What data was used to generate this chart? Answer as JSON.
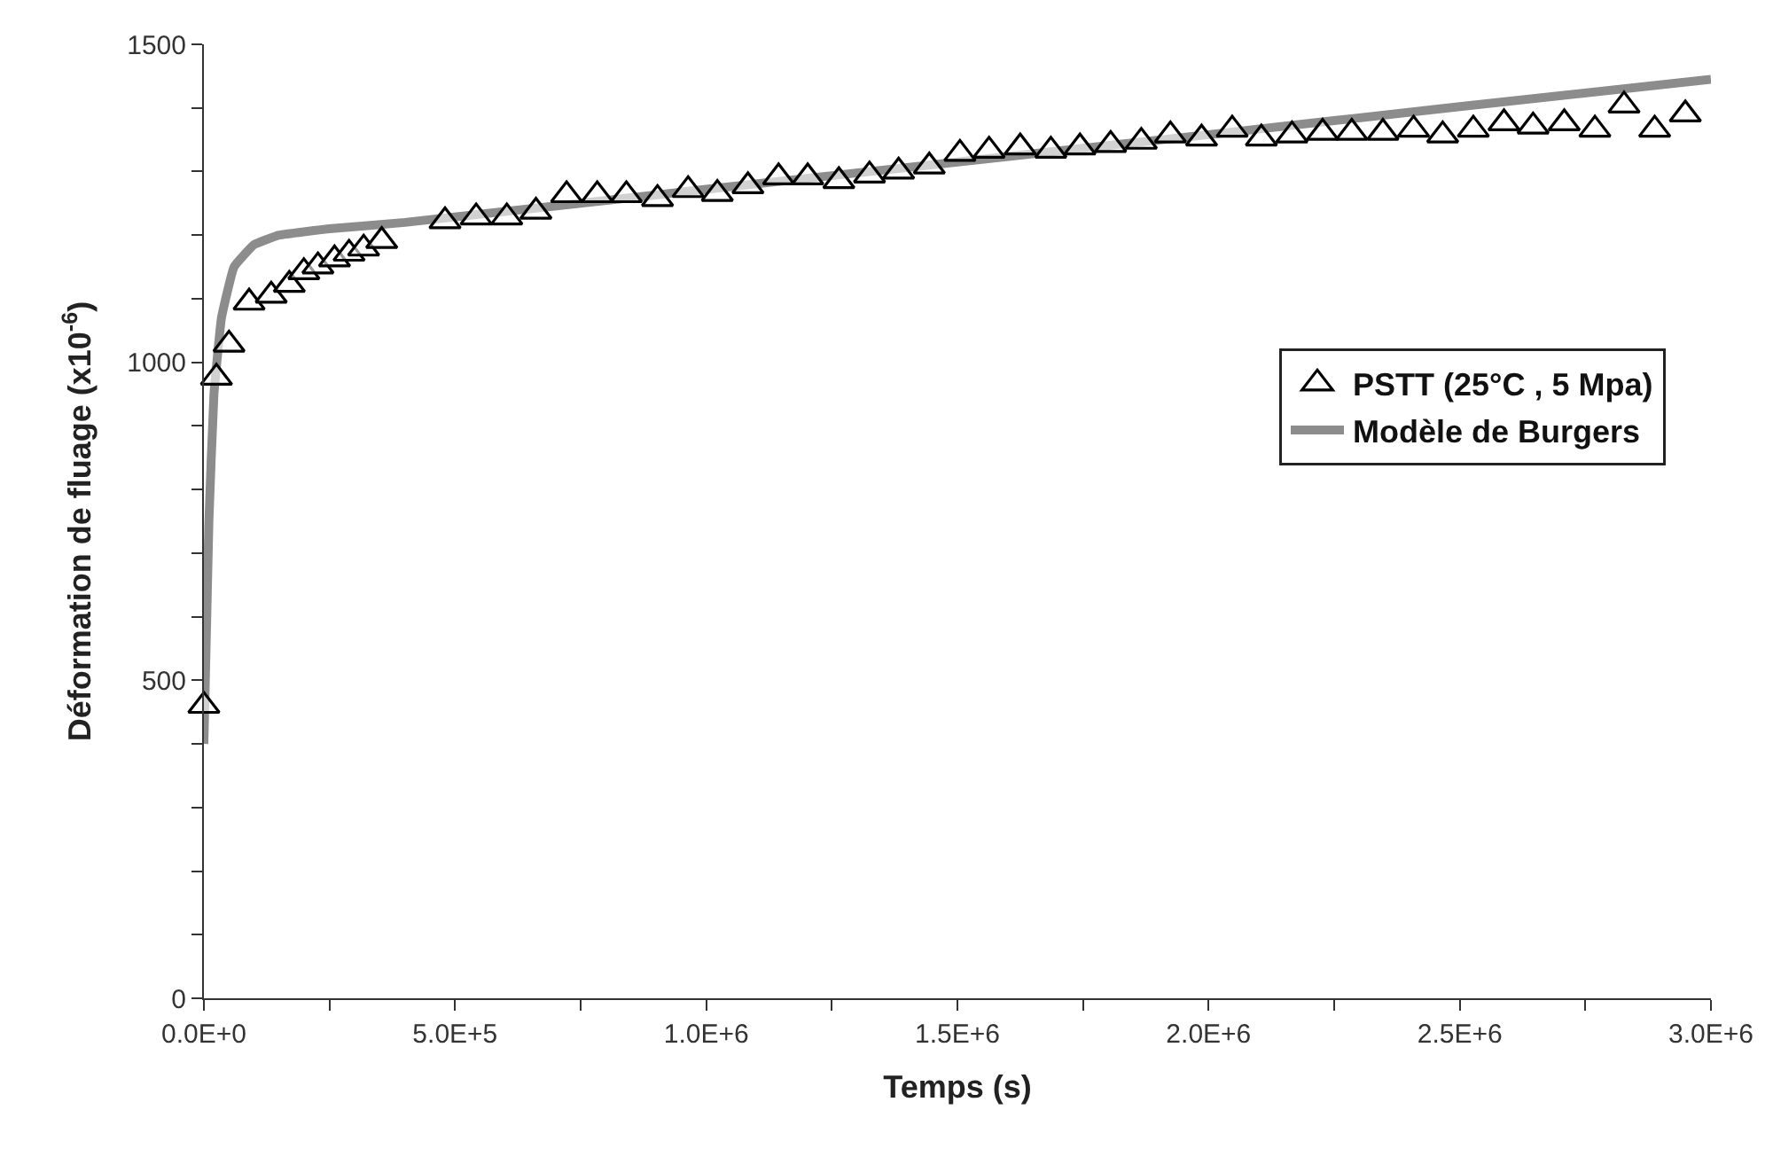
{
  "chart_data": {
    "type": "scatter",
    "xlabel": "Temps (s)",
    "ylabel": "Déformation de fluage (x10$^{-6}$)",
    "xlim": [
      0,
      3000000
    ],
    "ylim": [
      0,
      1500
    ],
    "xticks": [
      {
        "value": 0,
        "label": "0.0E+0"
      },
      {
        "value": 250000,
        "label": null
      },
      {
        "value": 500000,
        "label": "5.0E+5"
      },
      {
        "value": 750000,
        "label": null
      },
      {
        "value": 1000000,
        "label": "1.0E+6"
      },
      {
        "value": 1250000,
        "label": null
      },
      {
        "value": 1500000,
        "label": "1.5E+6"
      },
      {
        "value": 1750000,
        "label": null
      },
      {
        "value": 2000000,
        "label": "2.0E+6"
      },
      {
        "value": 2250000,
        "label": null
      },
      {
        "value": 2500000,
        "label": "2.5E+6"
      },
      {
        "value": 2750000,
        "label": null
      },
      {
        "value": 3000000,
        "label": "3.0E+6"
      }
    ],
    "yticks": [
      0,
      {
        "value": 100,
        "label": null
      },
      {
        "value": 200,
        "label": null
      },
      {
        "value": 300,
        "label": null
      },
      {
        "value": 400,
        "label": null
      },
      500,
      {
        "value": 600,
        "label": null
      },
      {
        "value": 700,
        "label": null
      },
      {
        "value": 800,
        "label": null
      },
      {
        "value": 900,
        "label": null
      },
      1000,
      {
        "value": 1100,
        "label": null
      },
      {
        "value": 1200,
        "label": null
      },
      {
        "value": 1300,
        "label": null
      },
      {
        "value": 1400,
        "label": null
      },
      1500
    ],
    "legend": "right",
    "series": [
      {
        "name": "PSTT (25°C , 5 Mpa)",
        "marker": "triangle",
        "color": "#000000",
        "x": [
          0,
          25000,
          50000,
          90000,
          134000,
          170000,
          199000,
          227000,
          260000,
          289000,
          318000,
          354000,
          480000,
          542000,
          603000,
          661000,
          722000,
          783000,
          841000,
          903000,
          964000,
          1022000,
          1083000,
          1144000,
          1202000,
          1264000,
          1325000,
          1383000,
          1444000,
          1505000,
          1563000,
          1625000,
          1686000,
          1744000,
          1805000,
          1866000,
          1924000,
          1986000,
          2047000,
          2105000,
          2166000,
          2227000,
          2285000,
          2347000,
          2408000,
          2466000,
          2527000,
          2588000,
          2646000,
          2708000,
          2769000,
          2827000,
          2888000,
          2949000
        ],
        "values": [
          460,
          976,
          1028,
          1094,
          1105,
          1122,
          1142,
          1151,
          1162,
          1171,
          1179,
          1191,
          1222,
          1228,
          1228,
          1237,
          1263,
          1263,
          1263,
          1257,
          1271,
          1265,
          1277,
          1291,
          1291,
          1285,
          1294,
          1300,
          1308,
          1328,
          1333,
          1338,
          1333,
          1338,
          1342,
          1347,
          1357,
          1352,
          1366,
          1352,
          1357,
          1361,
          1361,
          1361,
          1366,
          1357,
          1366,
          1376,
          1371,
          1376,
          1366,
          1404,
          1366,
          1390
        ]
      },
      {
        "name": "Modèle de Burgers",
        "type": "line",
        "marker": "none",
        "line_style": "solid",
        "color": "#8c8c8c",
        "x": [
          0,
          10000,
          20000,
          35000,
          60000,
          100000,
          150000,
          250000,
          400000,
          1000000,
          1500000,
          2000000,
          2500000,
          3000000
        ],
        "values": [
          400,
          750,
          950,
          1070,
          1150,
          1185,
          1200,
          1210,
          1220,
          1272,
          1315,
          1358,
          1402,
          1445
        ]
      }
    ]
  }
}
